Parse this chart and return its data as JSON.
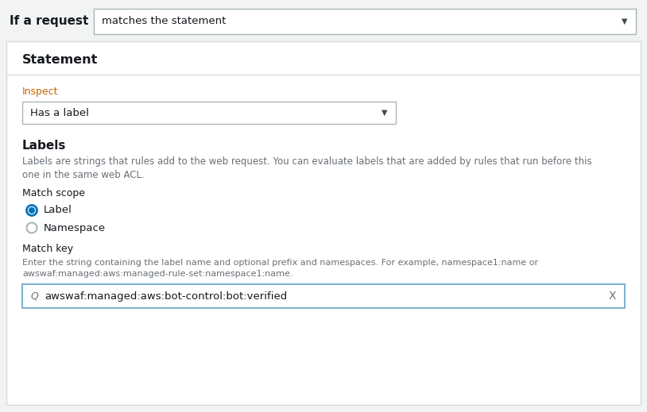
{
  "bg_color": "#f2f3f3",
  "panel_bg": "#ffffff",
  "panel_border": "#d5dbdb",
  "title_text": "If a request",
  "dropdown_text": "matches the statement",
  "dropdown_border": "#aab7b8",
  "dropdown_bg": "#ffffff",
  "statement_title": "Statement",
  "inspect_label": "Inspect",
  "inspect_dropdown_text": "Has a label",
  "inspect_dropdown_border": "#aab7b8",
  "labels_title": "Labels",
  "labels_desc_line1": "Labels are strings that rules add to the web request. You can evaluate labels that are added by rules that run before this",
  "labels_desc_line2": "one in the same web ACL.",
  "labels_desc_color": "#687078",
  "match_scope_label": "Match scope",
  "radio_label_selected": "Label",
  "radio_label_unselected": "Namespace",
  "radio_selected_color": "#0073bb",
  "radio_unselected_border": "#aab7b8",
  "match_key_label": "Match key",
  "match_key_desc_line1": "Enter the string containing the label name and optional prefix and namespaces. For example, namespace1:name or",
  "match_key_desc_line2": "awswaf:managed:aws:managed-rule-set:namespace1:name.",
  "match_key_desc_color": "#687078",
  "match_key_input_text": "awswaf:managed:aws:bot-control:bot:verified",
  "match_key_input_border": "#7fb3d3",
  "section_title_color": "#16191f",
  "body_text_color": "#16191f",
  "label_color": "#16191f",
  "inspect_label_color": "#cc6600"
}
